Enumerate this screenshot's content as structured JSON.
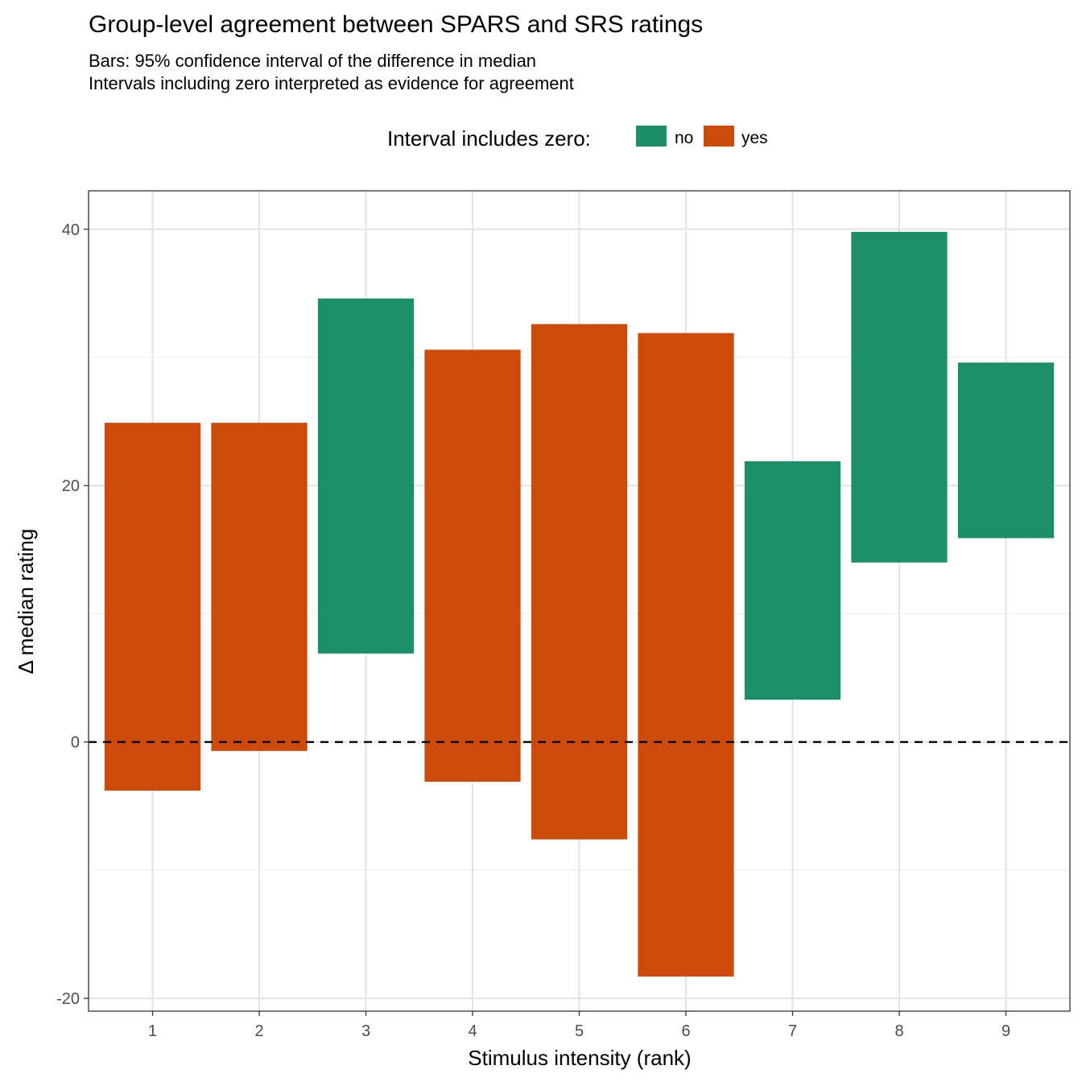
{
  "chart_data": {
    "type": "bar",
    "subtype": "floating-range",
    "title": "Group-level agreement between SPARS and SRS ratings",
    "subtitle": [
      "Bars: 95% confidence interval of the difference in median",
      "Intervals including zero interpreted as evidence for agreement"
    ],
    "xlabel": "Stimulus intensity (rank)",
    "ylabel": "Δ median rating",
    "categories": [
      "1",
      "2",
      "3",
      "4",
      "5",
      "6",
      "7",
      "8",
      "9"
    ],
    "intervals": [
      {
        "x": "1",
        "low": -3.8,
        "high": 24.9,
        "group": "yes"
      },
      {
        "x": "2",
        "low": -0.7,
        "high": 24.9,
        "group": "yes"
      },
      {
        "x": "3",
        "low": 6.9,
        "high": 34.6,
        "group": "no"
      },
      {
        "x": "4",
        "low": -3.1,
        "high": 30.6,
        "group": "yes"
      },
      {
        "x": "5",
        "low": -7.6,
        "high": 32.6,
        "group": "yes"
      },
      {
        "x": "6",
        "low": -18.3,
        "high": 31.9,
        "group": "yes"
      },
      {
        "x": "7",
        "low": 3.3,
        "high": 21.9,
        "group": "no"
      },
      {
        "x": "8",
        "low": 14.0,
        "high": 39.8,
        "group": "no"
      },
      {
        "x": "9",
        "low": 15.9,
        "high": 29.6,
        "group": "no"
      }
    ],
    "ylim": [
      -21,
      43
    ],
    "yticks": [
      -20,
      0,
      20,
      40
    ],
    "reference_line": 0,
    "grid": true,
    "legend": {
      "title": "Interval includes zero:",
      "position": "top",
      "entries": [
        {
          "label": "no",
          "color": "#1b9068"
        },
        {
          "label": "yes",
          "color": "#cc4a0a"
        }
      ]
    }
  }
}
